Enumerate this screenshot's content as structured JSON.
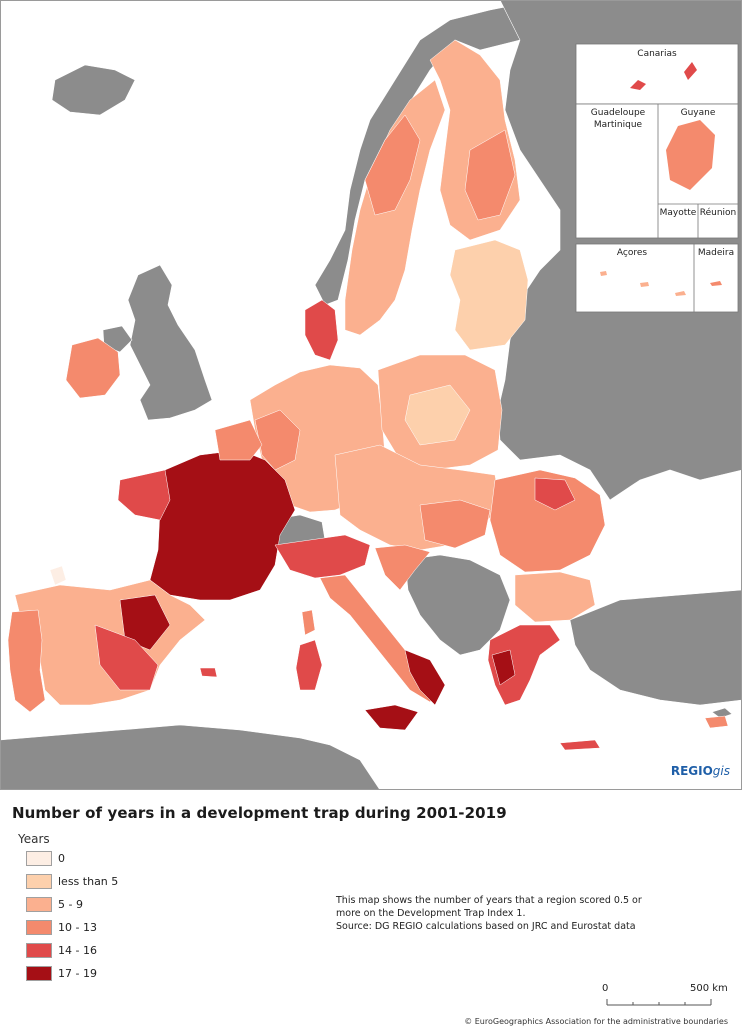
{
  "title": "Number of years in a development trap during 2001-2019",
  "legend": {
    "title": "Years",
    "items": [
      {
        "label": "0",
        "color": "#fdeee4"
      },
      {
        "label": "less than 5",
        "color": "#fdd0ac"
      },
      {
        "label": "5 - 9",
        "color": "#fbb08f"
      },
      {
        "label": "10 - 13",
        "color": "#f48a6d"
      },
      {
        "label": "14 - 16",
        "color": "#e04a4a"
      },
      {
        "label": "17 - 19",
        "color": "#a50f15"
      }
    ]
  },
  "note": {
    "line1": "This map shows the number of years that a region scored 0.5 or",
    "line2": "more on the Development Trap Index 1.",
    "line3": "Source: DG REGIO calculations based on JRC and Eurostat data"
  },
  "insets": {
    "canarias": "Canarias",
    "guadeloupe": "Guadeloupe",
    "martinique": "Martinique",
    "guyane": "Guyane",
    "mayotte": "Mayotte",
    "reunion": "Réunion",
    "acores": "Açores",
    "madeira": "Madeira"
  },
  "brand": {
    "regio": "REGIO",
    "gis": "gis"
  },
  "scale": {
    "zero": "0",
    "max": "500 km"
  },
  "copyright": "© EuroGeographics Association for the administrative boundaries",
  "colors": {
    "non_eu": "#8c8c8c",
    "sea": "#ffffff",
    "border": "#9a9a9a"
  }
}
